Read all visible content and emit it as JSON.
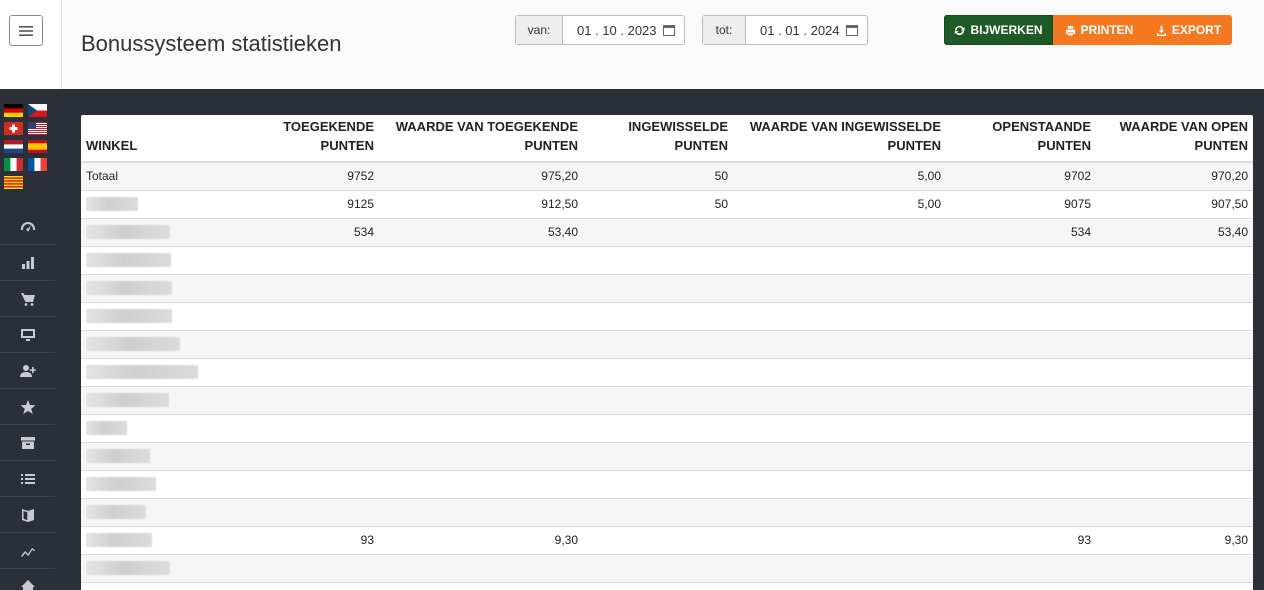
{
  "header": {
    "title": "Bonussysteem statistieken",
    "from_label": "van:",
    "from_value": "01 . 10 . 2023",
    "to_label": "tot:",
    "to_value": "01 . 01 . 2024",
    "buttons": {
      "update": "BIJWERKEN",
      "print": "PRINTEN",
      "export": "EXPORT"
    }
  },
  "sidebar": {
    "flags": [
      "de",
      "cz",
      "ch",
      "us",
      "nl",
      "es",
      "it",
      "fr",
      "ca"
    ],
    "nav_icons": [
      "dashboard-gauge-icon",
      "bar-chart-icon",
      "cart-icon",
      "monitor-icon",
      "add-user-icon",
      "star-icon",
      "archive-icon",
      "list-icon",
      "book-icon",
      "trend-icon",
      "home-icon"
    ]
  },
  "table": {
    "columns": [
      "WINKEL",
      "TOEGEKENDE PUNTEN",
      "WAARDE VAN TOEGEKENDE PUNTEN",
      "INGEWISSELDE PUNTEN",
      "WAARDE VAN INGEWISSELDE PUNTEN",
      "OPENSTAANDE PUNTEN",
      "WAARDE VAN OPEN PUNTEN"
    ],
    "rows": [
      [
        "Totaal",
        "9752",
        "975,20",
        "50",
        "5,00",
        "9702",
        "970,20"
      ],
      [
        "",
        "9125",
        "912,50",
        "50",
        "5,00",
        "9075",
        "907,50"
      ],
      [
        "",
        "534",
        "53,40",
        "",
        "",
        "534",
        "53,40"
      ],
      [
        "",
        "",
        "",
        "",
        "",
        "",
        ""
      ],
      [
        "",
        "",
        "",
        "",
        "",
        "",
        ""
      ],
      [
        "",
        "",
        "",
        "",
        "",
        "",
        ""
      ],
      [
        "",
        "",
        "",
        "",
        "",
        "",
        ""
      ],
      [
        "",
        "",
        "",
        "",
        "",
        "",
        ""
      ],
      [
        "",
        "",
        "",
        "",
        "",
        "",
        ""
      ],
      [
        "",
        "",
        "",
        "",
        "",
        "",
        ""
      ],
      [
        "",
        "",
        "",
        "",
        "",
        "",
        ""
      ],
      [
        "",
        "",
        "",
        "",
        "",
        "",
        ""
      ],
      [
        "",
        "",
        "",
        "",
        "",
        "",
        ""
      ],
      [
        "",
        "93",
        "9,30",
        "",
        "",
        "93",
        "9,30"
      ],
      [
        "",
        "",
        "",
        "",
        "",
        "",
        ""
      ]
    ]
  }
}
